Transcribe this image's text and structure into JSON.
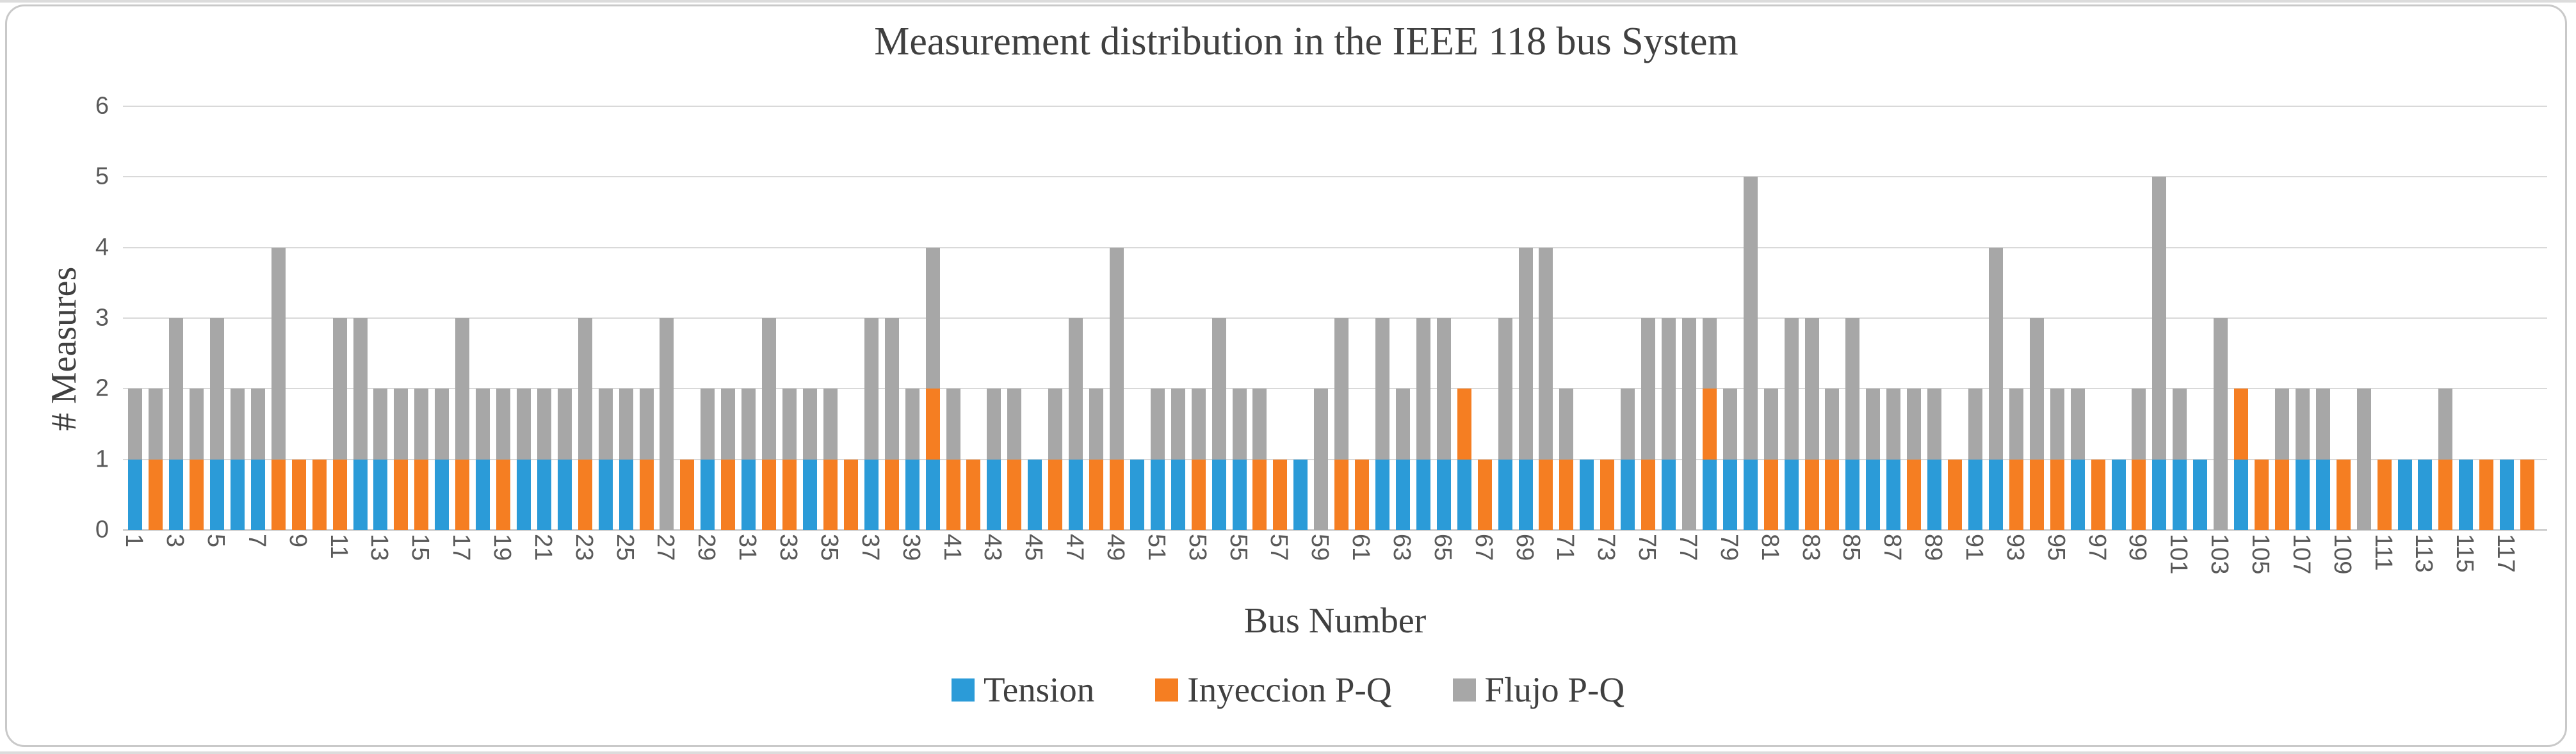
{
  "title": "Measurement distribution in the IEEE 118 bus System",
  "axes": {
    "x_label": "Bus Number",
    "y_label": "# Measures",
    "y_ticks": [
      0,
      1,
      2,
      3,
      4,
      5,
      6
    ]
  },
  "legend": [
    {
      "name": "Tension",
      "color": "#2b9bd8"
    },
    {
      "name": "Inyeccion P-Q",
      "color": "#f57e22"
    },
    {
      "name": "Flujo P-Q",
      "color": "#a7a7a7"
    }
  ],
  "colors": {
    "tension_blue": "#2b9bd8",
    "inyeccion_orange": "#f57e22",
    "flujo_gray": "#a7a7a7",
    "text_dark": "#404040",
    "text_tick": "#595959",
    "gridline": "#d9d9d9",
    "axis_line": "#bfbfbf",
    "panel_border": "#c9c9c9"
  },
  "chart_data": {
    "type": "bar",
    "stacked": true,
    "title": "Measurement distribution in the IEEE 118 bus System",
    "xlabel": "Bus Number",
    "ylabel": "# Measures",
    "ylim": [
      0,
      6
    ],
    "yticks": [
      0,
      1,
      2,
      3,
      4,
      5,
      6
    ],
    "grid": true,
    "legend_position": "bottom",
    "x_tick_rule": "odd-categories-only",
    "categories": [
      1,
      2,
      3,
      4,
      5,
      6,
      7,
      8,
      9,
      10,
      11,
      12,
      13,
      14,
      15,
      16,
      17,
      18,
      19,
      20,
      21,
      22,
      23,
      24,
      25,
      26,
      27,
      28,
      29,
      30,
      31,
      32,
      33,
      34,
      35,
      36,
      37,
      38,
      39,
      40,
      41,
      42,
      43,
      44,
      45,
      46,
      47,
      48,
      49,
      50,
      51,
      52,
      53,
      54,
      55,
      56,
      57,
      58,
      59,
      60,
      61,
      62,
      63,
      64,
      65,
      66,
      67,
      68,
      69,
      70,
      71,
      72,
      73,
      74,
      75,
      76,
      77,
      78,
      79,
      80,
      81,
      82,
      83,
      84,
      85,
      86,
      87,
      88,
      89,
      90,
      91,
      92,
      93,
      94,
      95,
      96,
      97,
      98,
      99,
      100,
      101,
      102,
      103,
      104,
      105,
      106,
      107,
      108,
      109,
      110,
      111,
      112,
      113,
      114,
      115,
      116,
      117,
      118
    ],
    "series": [
      {
        "name": "Tension",
        "color": "#2b9bd8",
        "values": [
          1,
          0,
          1,
          0,
          1,
          1,
          1,
          0,
          0,
          0,
          0,
          1,
          1,
          0,
          0,
          1,
          0,
          1,
          0,
          1,
          1,
          1,
          0,
          1,
          1,
          0,
          0,
          0,
          1,
          0,
          1,
          0,
          0,
          1,
          0,
          0,
          1,
          0,
          1,
          1,
          0,
          0,
          1,
          0,
          1,
          0,
          1,
          0,
          0,
          1,
          1,
          1,
          0,
          1,
          1,
          0,
          0,
          1,
          0,
          0,
          0,
          1,
          1,
          1,
          1,
          1,
          0,
          1,
          1,
          0,
          0,
          1,
          0,
          1,
          0,
          1,
          0,
          1,
          1,
          1,
          0,
          1,
          0,
          0,
          1,
          1,
          1,
          0,
          1,
          0,
          1,
          1,
          0,
          0,
          0,
          1,
          0,
          1,
          0,
          1,
          1,
          1,
          0,
          1,
          0,
          0,
          1,
          1,
          0,
          0,
          0,
          1,
          1,
          0,
          1,
          0,
          1,
          0
        ]
      },
      {
        "name": "Inyeccion P-Q",
        "color": "#f57e22",
        "values": [
          0,
          1,
          0,
          1,
          0,
          0,
          0,
          1,
          1,
          1,
          1,
          0,
          0,
          1,
          1,
          0,
          1,
          0,
          1,
          0,
          0,
          0,
          1,
          0,
          0,
          1,
          0,
          1,
          0,
          1,
          0,
          1,
          1,
          0,
          1,
          1,
          0,
          1,
          0,
          1,
          1,
          1,
          0,
          1,
          0,
          1,
          0,
          1,
          1,
          0,
          0,
          0,
          1,
          0,
          0,
          1,
          1,
          0,
          0,
          1,
          1,
          0,
          0,
          0,
          0,
          1,
          1,
          0,
          0,
          1,
          1,
          0,
          1,
          0,
          1,
          0,
          0,
          1,
          0,
          0,
          1,
          0,
          1,
          1,
          0,
          0,
          0,
          1,
          0,
          1,
          0,
          0,
          1,
          1,
          1,
          0,
          1,
          0,
          1,
          0,
          0,
          0,
          0,
          1,
          1,
          1,
          0,
          0,
          1,
          0,
          1,
          0,
          0,
          1,
          0,
          1,
          0,
          1
        ]
      },
      {
        "name": "Flujo P-Q",
        "color": "#a7a7a7",
        "values": [
          1,
          1,
          2,
          1,
          2,
          1,
          1,
          3,
          0,
          0,
          2,
          2,
          1,
          1,
          1,
          1,
          2,
          1,
          1,
          1,
          1,
          1,
          2,
          1,
          1,
          1,
          3,
          0,
          1,
          1,
          1,
          2,
          1,
          1,
          1,
          0,
          2,
          2,
          1,
          2,
          1,
          0,
          1,
          1,
          0,
          1,
          2,
          1,
          3,
          0,
          1,
          1,
          1,
          2,
          1,
          1,
          0,
          0,
          2,
          2,
          0,
          2,
          1,
          2,
          2,
          0,
          0,
          2,
          3,
          3,
          1,
          0,
          0,
          1,
          2,
          2,
          3,
          1,
          1,
          4,
          1,
          2,
          2,
          1,
          2,
          1,
          1,
          1,
          1,
          0,
          1,
          3,
          1,
          2,
          1,
          1,
          0,
          0,
          1,
          4,
          1,
          0,
          3,
          0,
          0,
          1,
          1,
          1,
          0,
          2,
          0,
          0,
          0,
          1,
          0,
          0,
          0,
          0
        ]
      }
    ]
  }
}
